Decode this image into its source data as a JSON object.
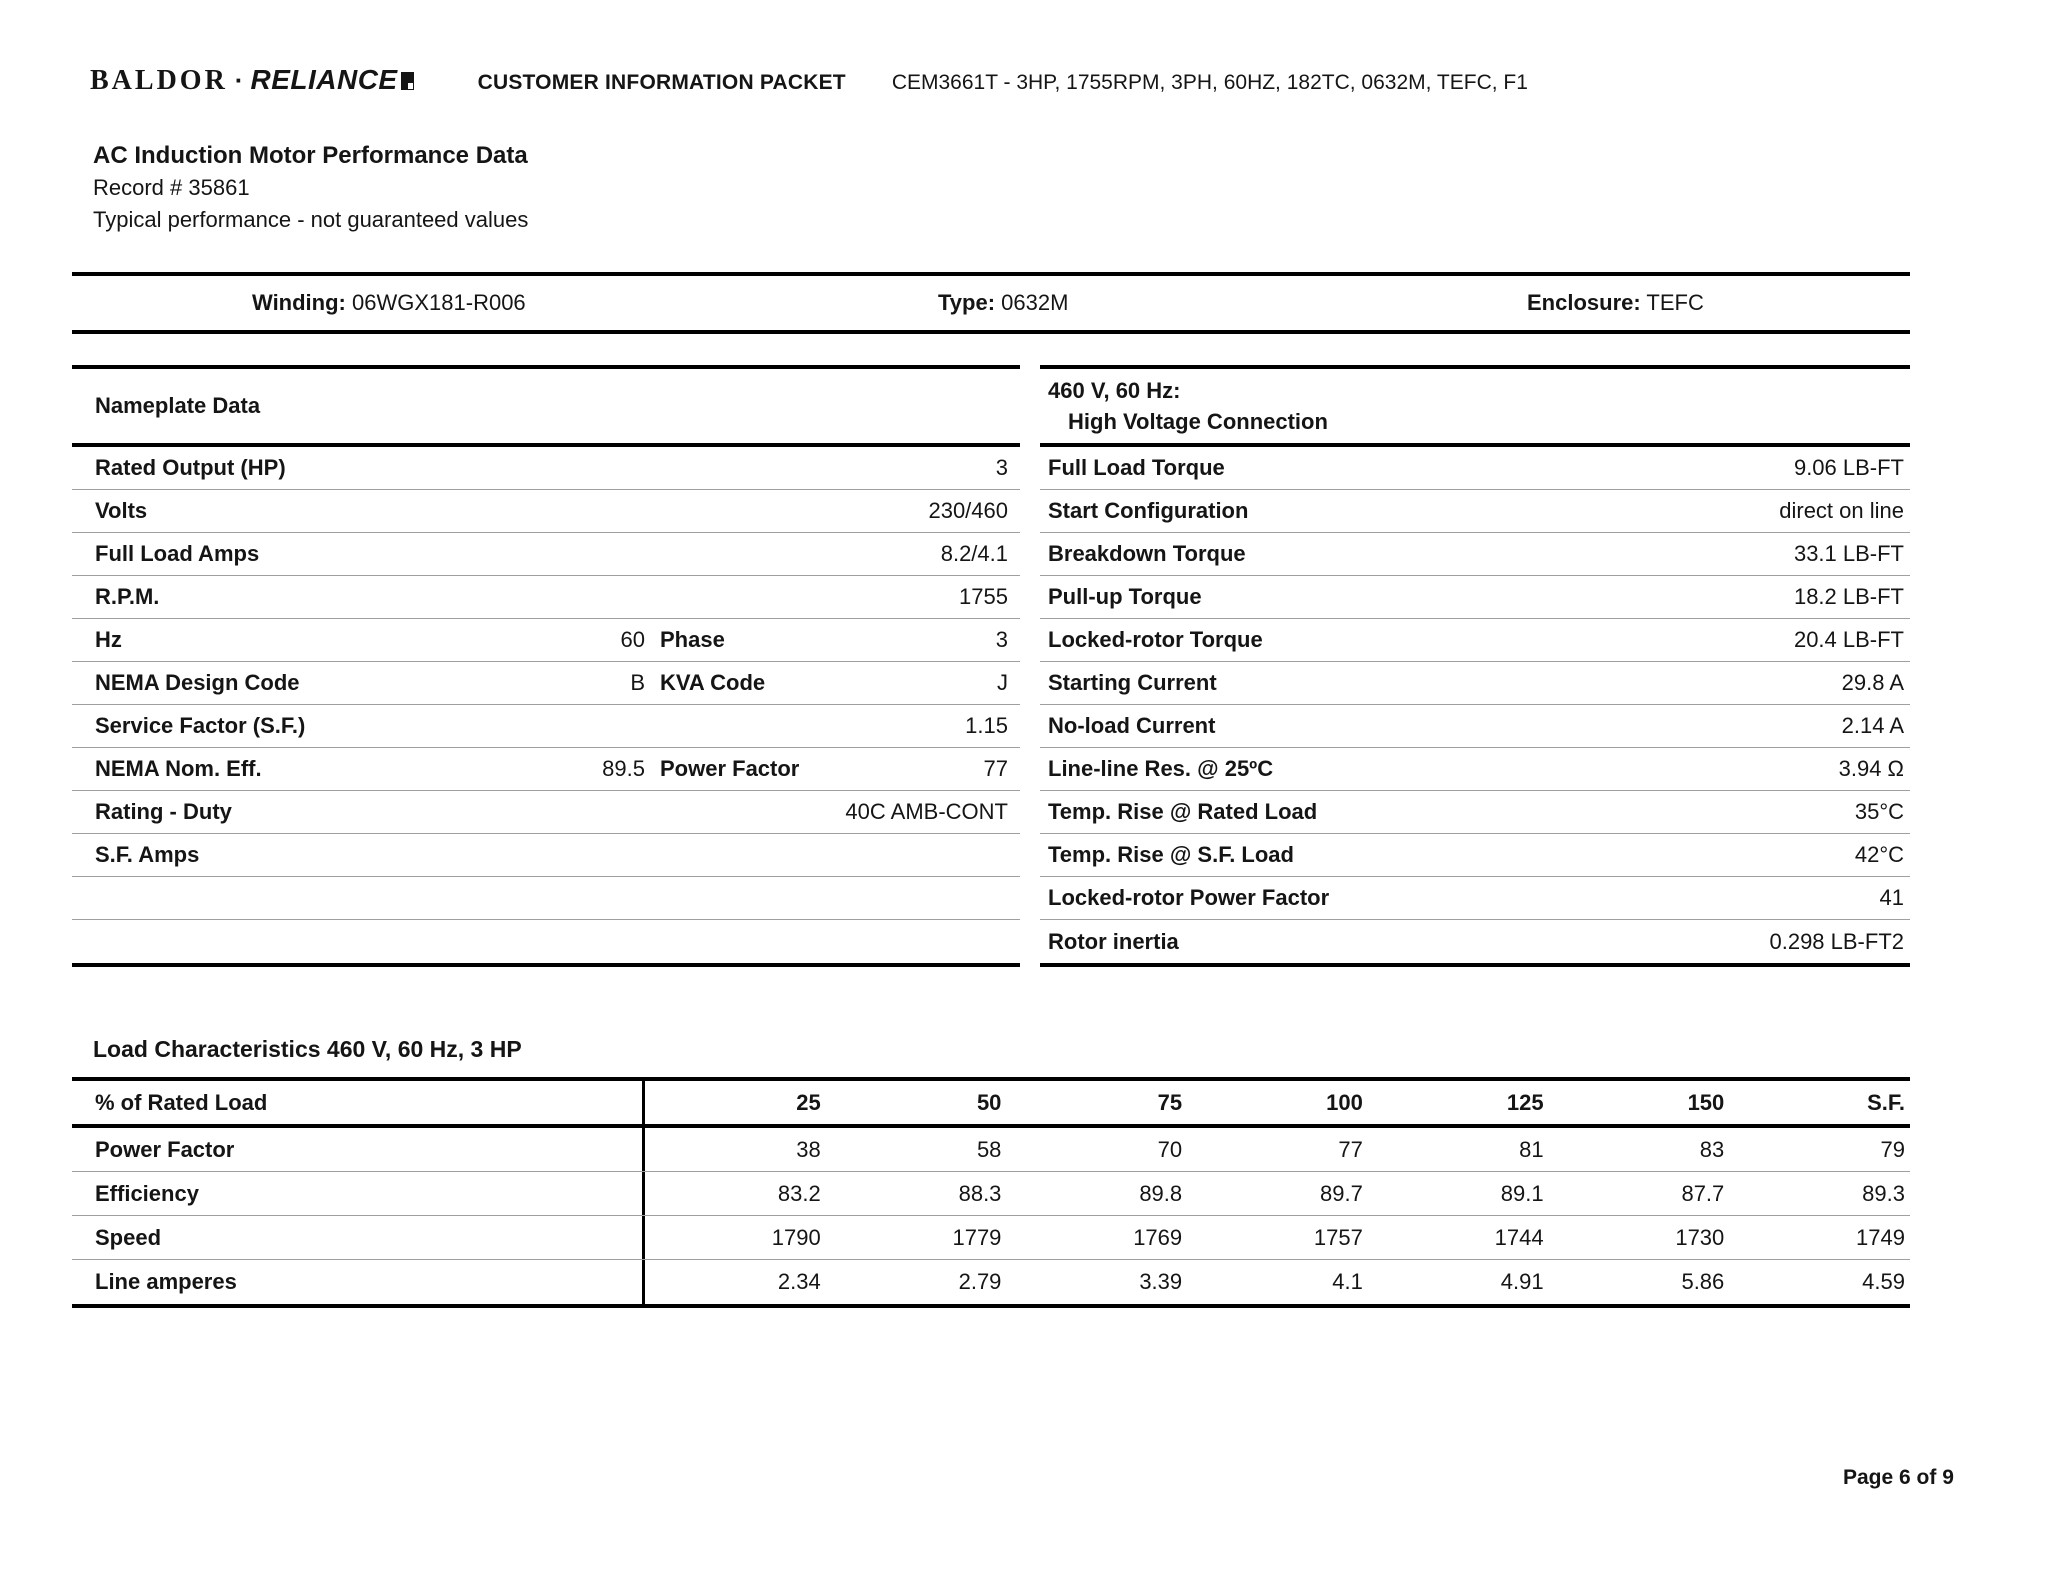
{
  "header": {
    "logo_baldor": "BALDOR",
    "logo_dot": "·",
    "logo_reliance": "RELIANCE",
    "packet_title": "CUSTOMER INFORMATION PACKET",
    "model_line": "CEM3661T - 3HP, 1755RPM, 3PH, 60HZ, 182TC, 0632M, TEFC, F1"
  },
  "title_block": {
    "title": "AC Induction Motor Performance Data",
    "record": "Record # 35861",
    "note": "Typical performance - not guaranteed values"
  },
  "winding_bar": {
    "winding_label": "Winding:",
    "winding_value": "06WGX181-R006",
    "type_label": "Type:",
    "type_value": "0632M",
    "enclosure_label": "Enclosure:",
    "enclosure_value": "TEFC"
  },
  "nameplate": {
    "header": "Nameplate Data",
    "rows": [
      {
        "label": "Rated Output (HP)",
        "mid_value": "",
        "label2": "",
        "value": "3"
      },
      {
        "label": "Volts",
        "mid_value": "",
        "label2": "",
        "value": "230/460"
      },
      {
        "label": "Full Load Amps",
        "mid_value": "",
        "label2": "",
        "value": "8.2/4.1"
      },
      {
        "label": "R.P.M.",
        "mid_value": "",
        "label2": "",
        "value": "1755"
      },
      {
        "label": "Hz",
        "mid_value": "60",
        "label2": "Phase",
        "value": "3"
      },
      {
        "label": "NEMA Design Code",
        "mid_value": "B",
        "label2": "KVA Code",
        "value": "J"
      },
      {
        "label": "Service Factor (S.F.)",
        "mid_value": "",
        "label2": "",
        "value": "1.15"
      },
      {
        "label": "NEMA Nom. Eff.",
        "mid_value": "89.5",
        "label2": "Power Factor",
        "value": "77"
      },
      {
        "label": "Rating - Duty",
        "mid_value": "",
        "label2": "",
        "value": "40C AMB-CONT"
      },
      {
        "label": "S.F. Amps",
        "mid_value": "",
        "label2": "",
        "value": ""
      },
      {
        "label": "",
        "mid_value": "",
        "label2": "",
        "value": ""
      },
      {
        "label": "",
        "mid_value": "",
        "label2": "",
        "value": ""
      }
    ]
  },
  "connection": {
    "header_line1": "460 V, 60 Hz:",
    "header_line2": "High Voltage Connection",
    "rows": [
      {
        "label": "Full Load Torque",
        "value": "9.06 LB-FT"
      },
      {
        "label": "Start Configuration",
        "value": "direct on line"
      },
      {
        "label": "Breakdown Torque",
        "value": "33.1 LB-FT"
      },
      {
        "label": "Pull-up Torque",
        "value": "18.2 LB-FT"
      },
      {
        "label": "Locked-rotor Torque",
        "value": "20.4 LB-FT"
      },
      {
        "label": "Starting Current",
        "value": "29.8 A"
      },
      {
        "label": "No-load Current",
        "value": "2.14 A"
      },
      {
        "label": "Line-line Res. @ 25ºC",
        "value": "3.94 Ω"
      },
      {
        "label": "Temp. Rise @ Rated Load",
        "value": "35°C"
      },
      {
        "label": "Temp. Rise @ S.F. Load",
        "value": "42°C"
      },
      {
        "label": "Locked-rotor Power Factor",
        "value": "41"
      },
      {
        "label": "Rotor inertia",
        "value": "0.298 LB-FT2"
      }
    ]
  },
  "load_section": {
    "title": "Load Characteristics 460 V, 60 Hz, 3 HP",
    "header": [
      "% of Rated Load",
      "25",
      "50",
      "75",
      "100",
      "125",
      "150",
      "S.F."
    ],
    "rows": [
      {
        "label": "Power Factor",
        "v1": "38",
        "v2": "58",
        "v3": "70",
        "v4": "77",
        "v5": "81",
        "v6": "83",
        "v7": "79"
      },
      {
        "label": "Efficiency",
        "v1": "83.2",
        "v2": "88.3",
        "v3": "89.8",
        "v4": "89.7",
        "v5": "89.1",
        "v6": "87.7",
        "v7": "89.3"
      },
      {
        "label": "Speed",
        "v1": "1790",
        "v2": "1779",
        "v3": "1769",
        "v4": "1757",
        "v5": "1744",
        "v6": "1730",
        "v7": "1749"
      },
      {
        "label": "Line amperes",
        "v1": "2.34",
        "v2": "2.79",
        "v3": "3.39",
        "v4": "4.1",
        "v5": "4.91",
        "v6": "5.86",
        "v7": "4.59"
      }
    ]
  },
  "footer": {
    "page": "Page 6 of 9"
  },
  "colors": {
    "text": "#151515",
    "rule_thick": "#000000",
    "rule_thin": "#9f9f9f",
    "background": "#ffffff"
  }
}
